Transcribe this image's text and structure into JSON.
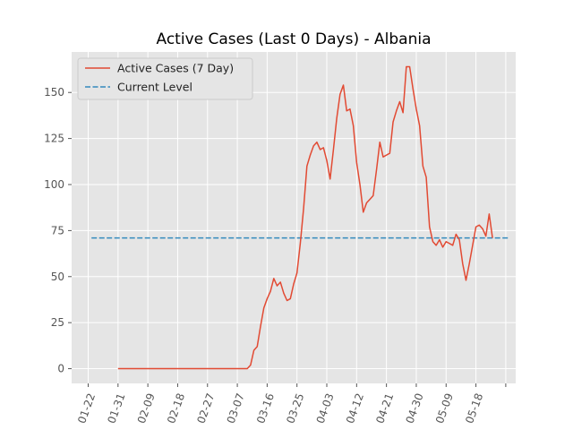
{
  "chart_data": {
    "type": "line",
    "title": "Active Cases (Last 0 Days) - Albania",
    "xlabel": "",
    "ylabel": "",
    "x_tick_labels": [
      "01-22",
      "01-31",
      "02-09",
      "02-18",
      "02-27",
      "03-07",
      "03-16",
      "03-25",
      "04-03",
      "04-12",
      "04-21",
      "04-30",
      "05-09",
      "05-18",
      ""
    ],
    "xlim": [
      -5,
      129
    ],
    "ylim": [
      -8,
      172
    ],
    "yticks": [
      0,
      25,
      50,
      75,
      100,
      125,
      150
    ],
    "grid": true,
    "legend_position": "upper-left",
    "colors": {
      "series": "#E24A33",
      "reference": "#348ABD",
      "panel": "#E5E5E5",
      "grid": "#FFFFFF"
    },
    "series": [
      {
        "name": "Active Cases (7 Day)",
        "style": "solid",
        "start_day": 9,
        "values": [
          0,
          0,
          0,
          0,
          0,
          0,
          0,
          0,
          0,
          0,
          0,
          0,
          0,
          0,
          0,
          0,
          0,
          0,
          0,
          0,
          0,
          0,
          0,
          0,
          0,
          0,
          0,
          0,
          0,
          0,
          0,
          0,
          0,
          0,
          0,
          0,
          0,
          0,
          0,
          0,
          2,
          10,
          12,
          23,
          33,
          38,
          42,
          49,
          45,
          47,
          41,
          37,
          38,
          46,
          52,
          68,
          87,
          110,
          116,
          121,
          123,
          119,
          120,
          113,
          103,
          119,
          136,
          149,
          154,
          140,
          141,
          132,
          112,
          100,
          85,
          90,
          92,
          94,
          108,
          123,
          115,
          116,
          117,
          134,
          140,
          145,
          139,
          164,
          164,
          152,
          141,
          132,
          110,
          104,
          77,
          69,
          67,
          70,
          66,
          69,
          68,
          67,
          73,
          70,
          57,
          48,
          57,
          67,
          77,
          78,
          76,
          72,
          84,
          71
        ]
      },
      {
        "name": "Current Level",
        "style": "dashed",
        "x": [
          1,
          127
        ],
        "value": 71
      }
    ]
  }
}
